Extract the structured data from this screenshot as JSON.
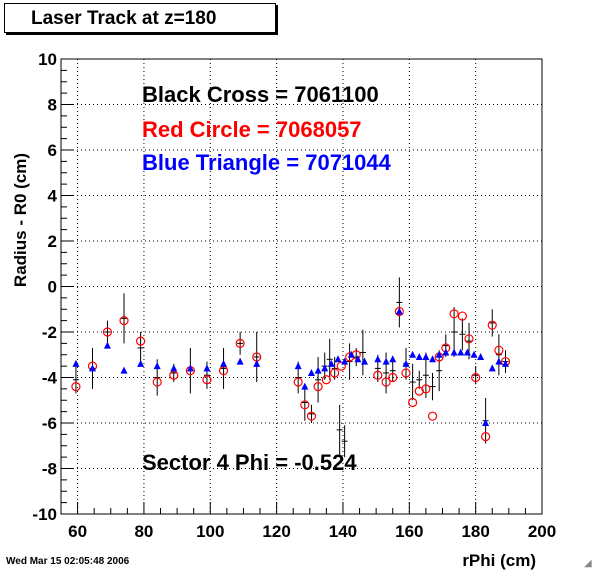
{
  "title": "Laser Track at z=180",
  "footer": "Wed Mar 15 02:05:48 2006",
  "colors": {
    "black": "#000000",
    "red": "#ff0000",
    "blue": "#0000ff"
  },
  "chart_data": {
    "type": "scatter",
    "xlabel": "rPhi (cm)",
    "ylabel": "Radius - R0 (cm)",
    "xlim": [
      55,
      200
    ],
    "ylim": [
      -10,
      10
    ],
    "x_ticks": [
      60,
      80,
      100,
      120,
      140,
      160,
      180,
      200
    ],
    "y_ticks": [
      -10,
      -8,
      -6,
      -4,
      -2,
      0,
      2,
      4,
      6,
      8,
      10
    ],
    "grid": true,
    "annotations": [
      {
        "text": "Black Cross  = 7061100",
        "color": "black"
      },
      {
        "text": "Red Circle = 7068057",
        "color": "red"
      },
      {
        "text": "Blue Triangle = 7071044",
        "color": "blue"
      },
      {
        "text": "Sector 4 Phi = -0.524",
        "color": "black"
      }
    ],
    "series": [
      {
        "marker": "cross",
        "color": "black",
        "points": [
          {
            "x": 59.5,
            "y": -4.1
          },
          {
            "x": 64.5,
            "y": -3.6
          },
          {
            "x": 69,
            "y": -2.0
          },
          {
            "x": 74,
            "y": -1.4
          },
          {
            "x": 79,
            "y": -2.7
          },
          {
            "x": 84,
            "y": -4.0
          },
          {
            "x": 89,
            "y": -3.8
          },
          {
            "x": 94,
            "y": -3.7
          },
          {
            "x": 99,
            "y": -3.9
          },
          {
            "x": 104,
            "y": -3.6
          },
          {
            "x": 109,
            "y": -2.5
          },
          {
            "x": 114,
            "y": -3.1
          },
          {
            "x": 126.5,
            "y": -4.0
          },
          {
            "x": 128.5,
            "y": -5.1
          },
          {
            "x": 130.5,
            "y": -5.6
          },
          {
            "x": 132.5,
            "y": -4.1
          },
          {
            "x": 134.5,
            "y": -3.5
          },
          {
            "x": 136,
            "y": -3.2
          },
          {
            "x": 137.5,
            "y": -3.6
          },
          {
            "x": 139,
            "y": -6.3
          },
          {
            "x": 140.5,
            "y": -6.8
          },
          {
            "x": 142,
            "y": -3.3
          },
          {
            "x": 144,
            "y": -3.1
          },
          {
            "x": 146,
            "y": -2.9
          },
          {
            "x": 150.5,
            "y": -3.6
          },
          {
            "x": 153,
            "y": -3.8
          },
          {
            "x": 155,
            "y": -3.7
          },
          {
            "x": 157,
            "y": -0.7
          },
          {
            "x": 159,
            "y": -3.4
          },
          {
            "x": 161,
            "y": -4.2
          },
          {
            "x": 163,
            "y": -4.1
          },
          {
            "x": 165,
            "y": -3.9
          },
          {
            "x": 167,
            "y": -4.4
          },
          {
            "x": 169,
            "y": -3.7
          },
          {
            "x": 171,
            "y": -2.6
          },
          {
            "x": 173.5,
            "y": -2.0
          },
          {
            "x": 176,
            "y": -2.1
          },
          {
            "x": 178,
            "y": -2.4
          },
          {
            "x": 180,
            "y": -3.9
          },
          {
            "x": 183,
            "y": -5.9
          },
          {
            "x": 185,
            "y": -1.6
          },
          {
            "x": 187,
            "y": -3.0
          },
          {
            "x": 189,
            "y": -3.3
          }
        ]
      },
      {
        "marker": "circle",
        "color": "red",
        "points": [
          {
            "x": 59.5,
            "y": -4.4
          },
          {
            "x": 64.5,
            "y": -3.5
          },
          {
            "x": 69,
            "y": -2.0
          },
          {
            "x": 74,
            "y": -1.5
          },
          {
            "x": 79,
            "y": -2.4
          },
          {
            "x": 84,
            "y": -4.2
          },
          {
            "x": 89,
            "y": -3.9
          },
          {
            "x": 94,
            "y": -3.7
          },
          {
            "x": 99,
            "y": -4.1
          },
          {
            "x": 104,
            "y": -3.7
          },
          {
            "x": 109,
            "y": -2.5
          },
          {
            "x": 114,
            "y": -3.1
          },
          {
            "x": 126.5,
            "y": -4.2
          },
          {
            "x": 128.5,
            "y": -5.2
          },
          {
            "x": 130.5,
            "y": -5.7
          },
          {
            "x": 132.5,
            "y": -4.4
          },
          {
            "x": 135,
            "y": -4.1
          },
          {
            "x": 137.5,
            "y": -3.8
          },
          {
            "x": 139.5,
            "y": -3.5
          },
          {
            "x": 142,
            "y": -3.1
          },
          {
            "x": 144,
            "y": -3.0
          },
          {
            "x": 150.5,
            "y": -3.9
          },
          {
            "x": 153,
            "y": -4.2
          },
          {
            "x": 155,
            "y": -4.0
          },
          {
            "x": 157,
            "y": -1.1
          },
          {
            "x": 159,
            "y": -3.8
          },
          {
            "x": 161,
            "y": -5.1
          },
          {
            "x": 163,
            "y": -4.6
          },
          {
            "x": 165,
            "y": -4.5
          },
          {
            "x": 167,
            "y": -5.7
          },
          {
            "x": 169,
            "y": -3.1
          },
          {
            "x": 171,
            "y": -2.7
          },
          {
            "x": 173.5,
            "y": -1.2
          },
          {
            "x": 176,
            "y": -1.3
          },
          {
            "x": 178,
            "y": -2.3
          },
          {
            "x": 180,
            "y": -4.0
          },
          {
            "x": 183,
            "y": -6.6
          },
          {
            "x": 185,
            "y": -1.7
          },
          {
            "x": 187,
            "y": -2.8
          },
          {
            "x": 189,
            "y": -3.3
          }
        ]
      },
      {
        "marker": "triangle",
        "color": "blue",
        "points": [
          {
            "x": 59.5,
            "y": -3.4
          },
          {
            "x": 64.5,
            "y": -3.6
          },
          {
            "x": 69,
            "y": -2.6
          },
          {
            "x": 74,
            "y": -3.7
          },
          {
            "x": 79,
            "y": -3.4
          },
          {
            "x": 84,
            "y": -3.5
          },
          {
            "x": 89,
            "y": -3.6
          },
          {
            "x": 94,
            "y": -3.6
          },
          {
            "x": 99,
            "y": -3.6
          },
          {
            "x": 104,
            "y": -3.4
          },
          {
            "x": 109,
            "y": -3.3
          },
          {
            "x": 114,
            "y": -3.4
          },
          {
            "x": 126.5,
            "y": -3.5
          },
          {
            "x": 128.5,
            "y": -4.4
          },
          {
            "x": 130.5,
            "y": -3.8
          },
          {
            "x": 132.5,
            "y": -3.7
          },
          {
            "x": 134.5,
            "y": -3.6
          },
          {
            "x": 136.5,
            "y": -3.4
          },
          {
            "x": 138.5,
            "y": -3.2
          },
          {
            "x": 140.5,
            "y": -3.3
          },
          {
            "x": 142.5,
            "y": -3.0
          },
          {
            "x": 144.5,
            "y": -3.2
          },
          {
            "x": 146.5,
            "y": -3.3
          },
          {
            "x": 150.5,
            "y": -3.2
          },
          {
            "x": 153,
            "y": -3.3
          },
          {
            "x": 155,
            "y": -3.2
          },
          {
            "x": 157,
            "y": -1.1
          },
          {
            "x": 159,
            "y": -3.4
          },
          {
            "x": 161,
            "y": -3.0
          },
          {
            "x": 163,
            "y": -3.1
          },
          {
            "x": 165,
            "y": -3.1
          },
          {
            "x": 167,
            "y": -3.2
          },
          {
            "x": 169,
            "y": -3.0
          },
          {
            "x": 171,
            "y": -2.9
          },
          {
            "x": 173.5,
            "y": -2.9
          },
          {
            "x": 175.5,
            "y": -2.9
          },
          {
            "x": 177.5,
            "y": -2.9
          },
          {
            "x": 179.5,
            "y": -3.0
          },
          {
            "x": 181.5,
            "y": -3.1
          },
          {
            "x": 183,
            "y": -6.0
          },
          {
            "x": 185,
            "y": -3.6
          },
          {
            "x": 187,
            "y": -3.3
          },
          {
            "x": 189,
            "y": -3.4
          }
        ]
      }
    ]
  }
}
